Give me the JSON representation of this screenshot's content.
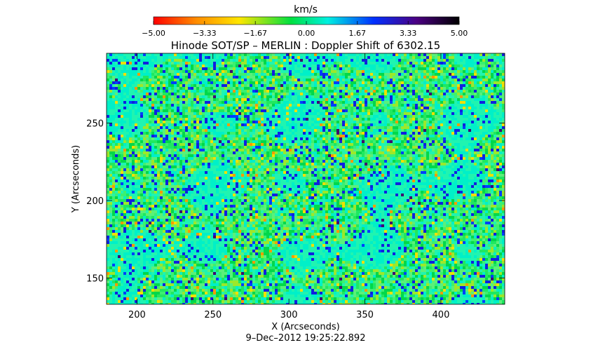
{
  "chart_data": {
    "type": "heatmap",
    "title": "Hinode SOT/SP – MERLIN : Doppler Shift of 6302.15",
    "xlabel": "X (Arcseconds)",
    "ylabel": "Y (Arcseconds)",
    "xlim": [
      180,
      442
    ],
    "ylim": [
      133,
      295
    ],
    "x_ticks": [
      200,
      250,
      300,
      350,
      400
    ],
    "y_ticks": [
      150,
      200,
      250
    ],
    "colorbar": {
      "label": "km/s",
      "range": [
        -5.0,
        5.0
      ],
      "tick_values": [
        -5.0,
        -3.33,
        -1.67,
        0.0,
        1.67,
        3.33,
        5.0
      ],
      "tick_labels": [
        "−5.00",
        "−3.33",
        "−1.67",
        "0.00",
        "1.67",
        "3.33",
        "5.00"
      ],
      "colors": [
        "#ff0000",
        "#ff8c00",
        "#ffe600",
        "#00e040",
        "#00f0e0",
        "#0030ff",
        "#4b0082",
        "#000000"
      ]
    },
    "field": "Doppler velocity map, granulation pattern; values mostly between −1.67 and 1.67 km/s (green/cyan), scattered blue (~3 km/s) and yellow (~−2 km/s) points",
    "footer": "9–Dec–2012 19:25:22.892"
  }
}
